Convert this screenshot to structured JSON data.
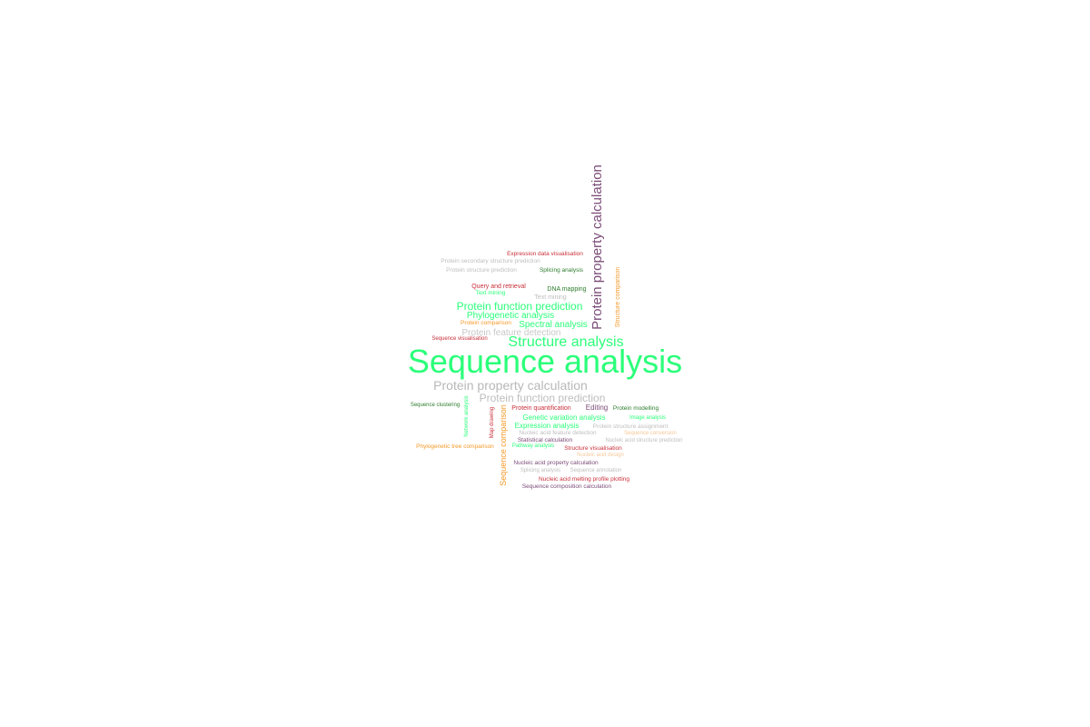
{
  "words": [
    {
      "text": "Sequence analysis",
      "color": "#2BFF7A"
    },
    {
      "text": "Protein property calculation",
      "color": "#7B4C78"
    },
    {
      "text": "Structure analysis",
      "color": "#2BFF7A"
    },
    {
      "text": "Protein property calculation",
      "color": "#B8B8B8"
    },
    {
      "text": "Protein function prediction",
      "color": "#BEBEBE"
    },
    {
      "text": "Protein function prediction",
      "color": "#2BFF7A"
    },
    {
      "text": "Phylogenetic analysis",
      "color": "#2BFF7A"
    },
    {
      "text": "Spectral analysis",
      "color": "#2BFF7A"
    },
    {
      "text": "Protein feature detection",
      "color": "#C8C8C8"
    },
    {
      "text": "Sequence comparison",
      "color": "#F59A2A"
    },
    {
      "text": "Structure comparison",
      "color": "#F59A2A"
    },
    {
      "text": "Network analysis",
      "color": "#2BFF7A"
    },
    {
      "text": "Map drawing",
      "color": "#C8303A"
    },
    {
      "text": "Genetic variation analysis",
      "color": "#2BFF7A"
    },
    {
      "text": "Expression analysis",
      "color": "#2BFF7A"
    },
    {
      "text": "Editing",
      "color": "#7B4C78"
    },
    {
      "text": "Expression data visualisation",
      "color": "#C8303A"
    },
    {
      "text": "Protein secondary structure prediction",
      "color": "#BEBEBE"
    },
    {
      "text": "Protein structure prediction",
      "color": "#BEBEBE"
    },
    {
      "text": "Splicing analysis",
      "color": "#2E7D2E"
    },
    {
      "text": "Query and retrieval",
      "color": "#C8303A"
    },
    {
      "text": "DNA mapping",
      "color": "#2E7D2E"
    },
    {
      "text": "Text mining",
      "color": "#2BFF7A"
    },
    {
      "text": "Text mining",
      "color": "#BEBEBE"
    },
    {
      "text": "Protein comparison",
      "color": "#F59A2A"
    },
    {
      "text": "Sequence visualisation",
      "color": "#C8303A"
    },
    {
      "text": "Sequence clustering",
      "color": "#2E7D2E"
    },
    {
      "text": "Protein quantification",
      "color": "#C8303A"
    },
    {
      "text": "Protein modelling",
      "color": "#2E7D2E"
    },
    {
      "text": "Image analysis",
      "color": "#2BFF7A"
    },
    {
      "text": "Protein structure assignment",
      "color": "#BEBEBE"
    },
    {
      "text": "Nucleic acid feature detection",
      "color": "#BEBEBE"
    },
    {
      "text": "Sequence conversion",
      "color": "#F5C89A"
    },
    {
      "text": "Statistical calculation",
      "color": "#7B4C78"
    },
    {
      "text": "Nucleic acid structure prediction",
      "color": "#BEBEBE"
    },
    {
      "text": "Phylogenetic tree comparison",
      "color": "#F59A2A"
    },
    {
      "text": "Pathway analysis",
      "color": "#2BFF7A"
    },
    {
      "text": "Structure visualisation",
      "color": "#C8303A"
    },
    {
      "text": "Nucleic acid design",
      "color": "#F5C89A"
    },
    {
      "text": "Nucleic acid property calculation",
      "color": "#7B4C78"
    },
    {
      "text": "Splicing analysis",
      "color": "#BEBEBE"
    },
    {
      "text": "Sequence annotation",
      "color": "#BEBEBE"
    },
    {
      "text": "Nucleic acid melting profile plotting",
      "color": "#C8303A"
    },
    {
      "text": "Sequence composition calculation",
      "color": "#7B4C78"
    }
  ]
}
